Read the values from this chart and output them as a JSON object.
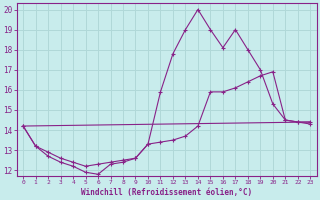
{
  "xlabel": "Windchill (Refroidissement éolien,°C)",
  "background_color": "#c8ecec",
  "grid_color": "#b0d8d8",
  "line_color": "#882288",
  "spine_color": "#882288",
  "xlim": [
    -0.5,
    23.5
  ],
  "ylim": [
    11.7,
    20.3
  ],
  "yticks": [
    12,
    13,
    14,
    15,
    16,
    17,
    18,
    19,
    20
  ],
  "xticks": [
    0,
    1,
    2,
    3,
    4,
    5,
    6,
    7,
    8,
    9,
    10,
    11,
    12,
    13,
    14,
    15,
    16,
    17,
    18,
    19,
    20,
    21,
    22,
    23
  ],
  "series1_x": [
    0,
    1,
    2,
    3,
    4,
    5,
    6,
    7,
    8,
    9,
    10,
    11,
    12,
    13,
    14,
    15,
    16,
    17,
    18,
    19,
    20,
    21,
    22,
    23
  ],
  "series1_y": [
    14.2,
    13.2,
    12.7,
    12.4,
    12.2,
    11.9,
    11.8,
    12.3,
    12.4,
    12.6,
    13.3,
    15.9,
    17.8,
    19.0,
    20.0,
    19.0,
    18.1,
    19.0,
    18.0,
    17.0,
    15.3,
    14.5,
    14.4,
    14.3
  ],
  "series2_x": [
    0,
    1,
    2,
    3,
    4,
    5,
    6,
    7,
    8,
    9,
    10,
    11,
    12,
    13,
    14,
    15,
    16,
    17,
    18,
    19,
    20,
    21,
    22,
    23
  ],
  "series2_y": [
    14.2,
    13.2,
    12.9,
    12.6,
    12.4,
    12.2,
    12.3,
    12.4,
    12.5,
    12.6,
    13.3,
    13.4,
    13.5,
    13.7,
    14.2,
    15.9,
    15.9,
    16.1,
    16.4,
    16.7,
    16.9,
    14.5,
    14.4,
    14.4
  ],
  "series3_x": [
    0,
    23
  ],
  "series3_y": [
    14.2,
    14.4
  ]
}
